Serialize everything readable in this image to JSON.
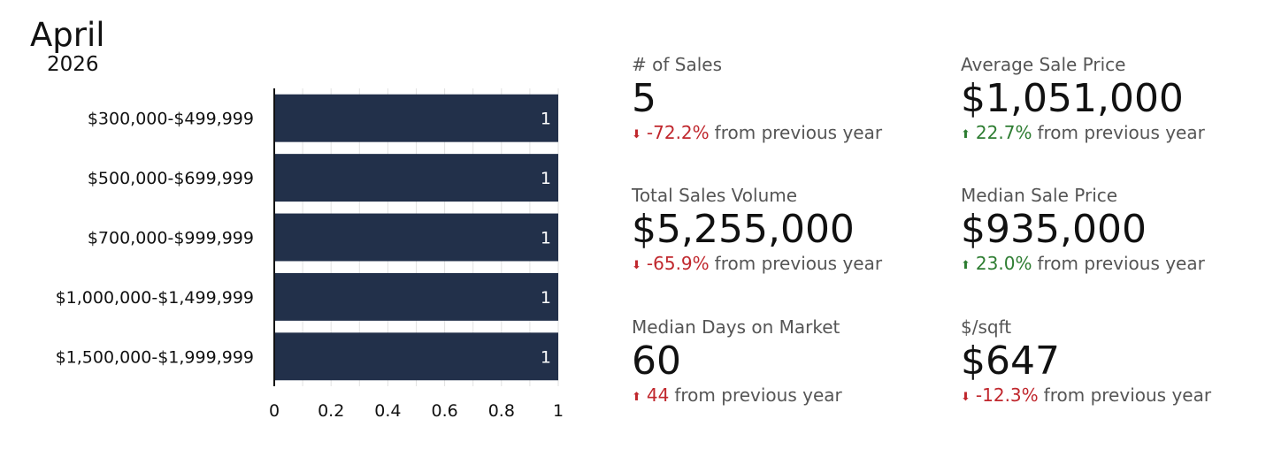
{
  "header": {
    "month": "April",
    "year": "2026"
  },
  "chart_data": {
    "type": "bar",
    "orientation": "horizontal",
    "categories": [
      "$300,000-$499,999",
      "$500,000-$699,999",
      "$700,000-$999,999",
      "$1,000,000-$1,499,999",
      "$1,500,000-$1,999,999"
    ],
    "values": [
      1,
      1,
      1,
      1,
      1
    ],
    "value_labels": [
      "1",
      "1",
      "1",
      "1",
      "1"
    ],
    "xlim": [
      0,
      1
    ],
    "x_ticks": [
      "0",
      "0.2",
      "0.4",
      "0.6",
      "0.8",
      "1"
    ],
    "grid": true,
    "bar_color": "#22304a"
  },
  "stats": [
    {
      "label": "# of Sales",
      "value": "5",
      "direction": "down",
      "change": "-72.2%",
      "suffix": "from previous year",
      "color": "#c0272d"
    },
    {
      "label": "Average Sale Price",
      "value": "$1,051,000",
      "direction": "up",
      "change": "22.7%",
      "suffix": "from previous year",
      "color": "#2e7d32"
    },
    {
      "label": "Total Sales Volume",
      "value": "$5,255,000",
      "direction": "down",
      "change": "-65.9%",
      "suffix": "from previous year",
      "color": "#c0272d"
    },
    {
      "label": "Median Sale Price",
      "value": "$935,000",
      "direction": "up",
      "change": "23.0%",
      "suffix": "from previous year",
      "color": "#2e7d32"
    },
    {
      "label": "Median Days on Market",
      "value": "60",
      "direction": "up",
      "change": "44",
      "suffix": "from previous year",
      "color": "#c0272d"
    },
    {
      "label": "$/sqft",
      "value": "$647",
      "direction": "down",
      "change": "-12.3%",
      "suffix": "from previous year",
      "color": "#c0272d"
    }
  ]
}
